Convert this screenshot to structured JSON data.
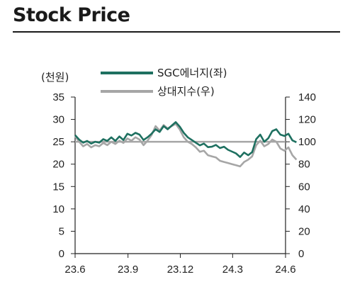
{
  "title": "Stock Price",
  "chart_data": {
    "type": "line",
    "y_left": {
      "unit": "(천원)",
      "min": 0,
      "max": 35,
      "ticks": [
        0,
        5,
        10,
        15,
        20,
        25,
        30,
        35
      ]
    },
    "y_right": {
      "min": 0,
      "max": 140,
      "ticks": [
        0,
        20,
        40,
        60,
        80,
        100,
        120,
        140
      ]
    },
    "x": {
      "min": "2023-06",
      "max": "2024-06",
      "ticks": [
        "23.6",
        "23.9",
        "23.12",
        "24.3",
        "24.6"
      ]
    },
    "reference_line": {
      "axis": "right",
      "value": 100,
      "color": "#a6a6a6"
    },
    "legend_position": "top-center",
    "series": [
      {
        "name": "SGC에너지(좌)",
        "axis": "left",
        "color": "#1e7060",
        "points": [
          [
            "2023-06-01",
            26.5
          ],
          [
            "2023-06-08",
            25.5
          ],
          [
            "2023-06-15",
            24.8
          ],
          [
            "2023-06-22",
            25.2
          ],
          [
            "2023-06-29",
            24.6
          ],
          [
            "2023-07-06",
            25.0
          ],
          [
            "2023-07-13",
            24.8
          ],
          [
            "2023-07-20",
            25.6
          ],
          [
            "2023-07-27",
            25.2
          ],
          [
            "2023-08-03",
            26.0
          ],
          [
            "2023-08-10",
            25.2
          ],
          [
            "2023-08-17",
            26.2
          ],
          [
            "2023-08-24",
            25.4
          ],
          [
            "2023-08-31",
            26.8
          ],
          [
            "2023-09-07",
            26.4
          ],
          [
            "2023-09-14",
            27.0
          ],
          [
            "2023-09-21",
            26.6
          ],
          [
            "2023-09-28",
            25.4
          ],
          [
            "2023-10-05",
            26.0
          ],
          [
            "2023-10-12",
            26.8
          ],
          [
            "2023-10-19",
            27.8
          ],
          [
            "2023-10-26",
            27.2
          ],
          [
            "2023-11-02",
            28.5
          ],
          [
            "2023-11-09",
            27.8
          ],
          [
            "2023-11-16",
            28.6
          ],
          [
            "2023-11-23",
            29.4
          ],
          [
            "2023-11-30",
            28.4
          ],
          [
            "2023-12-07",
            27.0
          ],
          [
            "2023-12-14",
            26.0
          ],
          [
            "2023-12-21",
            25.4
          ],
          [
            "2023-12-28",
            24.8
          ],
          [
            "2024-01-04",
            24.2
          ],
          [
            "2024-01-11",
            24.6
          ],
          [
            "2024-01-18",
            23.8
          ],
          [
            "2024-01-25",
            23.9
          ],
          [
            "2024-02-01",
            24.3
          ],
          [
            "2024-02-08",
            23.6
          ],
          [
            "2024-02-15",
            23.9
          ],
          [
            "2024-02-22",
            23.2
          ],
          [
            "2024-02-29",
            22.8
          ],
          [
            "2024-03-07",
            22.4
          ],
          [
            "2024-03-14",
            21.6
          ],
          [
            "2024-03-21",
            22.6
          ],
          [
            "2024-03-28",
            22.0
          ],
          [
            "2024-04-04",
            22.7
          ],
          [
            "2024-04-11",
            25.6
          ],
          [
            "2024-04-18",
            26.6
          ],
          [
            "2024-04-25",
            25.0
          ],
          [
            "2024-05-02",
            25.8
          ],
          [
            "2024-05-09",
            27.4
          ],
          [
            "2024-05-16",
            27.8
          ],
          [
            "2024-05-23",
            26.6
          ],
          [
            "2024-05-30",
            26.3
          ],
          [
            "2024-06-06",
            26.8
          ],
          [
            "2024-06-13",
            25.3
          ],
          [
            "2024-06-20",
            24.9
          ]
        ]
      },
      {
        "name": "상대지수(우)",
        "axis": "right",
        "color": "#a6a6a6",
        "points": [
          [
            "2023-06-01",
            105
          ],
          [
            "2023-06-08",
            100
          ],
          [
            "2023-06-15",
            96
          ],
          [
            "2023-06-22",
            98
          ],
          [
            "2023-06-29",
            95
          ],
          [
            "2023-07-06",
            97
          ],
          [
            "2023-07-13",
            96
          ],
          [
            "2023-07-20",
            99
          ],
          [
            "2023-07-27",
            97
          ],
          [
            "2023-08-03",
            100
          ],
          [
            "2023-08-10",
            98
          ],
          [
            "2023-08-17",
            101
          ],
          [
            "2023-08-24",
            99
          ],
          [
            "2023-08-31",
            103
          ],
          [
            "2023-09-07",
            101
          ],
          [
            "2023-09-14",
            104
          ],
          [
            "2023-09-21",
            102
          ],
          [
            "2023-09-28",
            97
          ],
          [
            "2023-10-05",
            101
          ],
          [
            "2023-10-12",
            106
          ],
          [
            "2023-10-19",
            114
          ],
          [
            "2023-10-26",
            110
          ],
          [
            "2023-11-02",
            115
          ],
          [
            "2023-11-09",
            112
          ],
          [
            "2023-11-16",
            114
          ],
          [
            "2023-11-23",
            116
          ],
          [
            "2023-11-30",
            111
          ],
          [
            "2023-12-07",
            104
          ],
          [
            "2023-12-14",
            100
          ],
          [
            "2023-12-21",
            98
          ],
          [
            "2023-12-28",
            95
          ],
          [
            "2024-01-04",
            91
          ],
          [
            "2024-01-11",
            92
          ],
          [
            "2024-01-18",
            88
          ],
          [
            "2024-01-25",
            87
          ],
          [
            "2024-02-01",
            86
          ],
          [
            "2024-02-08",
            83
          ],
          [
            "2024-02-15",
            82
          ],
          [
            "2024-02-22",
            81
          ],
          [
            "2024-02-29",
            80
          ],
          [
            "2024-03-07",
            79
          ],
          [
            "2024-03-14",
            78
          ],
          [
            "2024-03-21",
            82
          ],
          [
            "2024-03-28",
            84
          ],
          [
            "2024-04-04",
            87
          ],
          [
            "2024-04-11",
            97
          ],
          [
            "2024-04-18",
            101
          ],
          [
            "2024-04-25",
            96
          ],
          [
            "2024-05-02",
            98
          ],
          [
            "2024-05-09",
            102
          ],
          [
            "2024-05-16",
            100
          ],
          [
            "2024-05-23",
            94
          ],
          [
            "2024-05-30",
            92
          ],
          [
            "2024-06-06",
            95
          ],
          [
            "2024-06-13",
            88
          ],
          [
            "2024-06-20",
            84
          ]
        ]
      }
    ]
  }
}
